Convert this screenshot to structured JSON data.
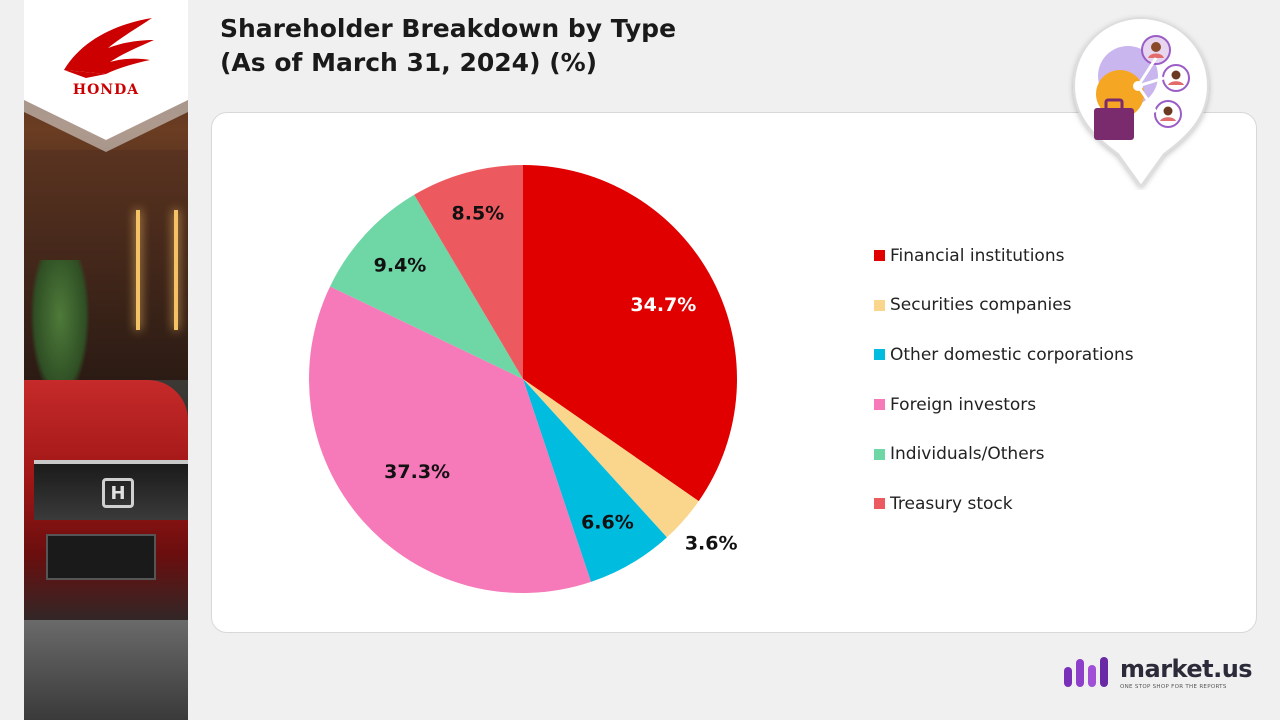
{
  "brand_logo": {
    "text": "HONDA",
    "color": "#cc0000"
  },
  "title": {
    "line1": "Shareholder Breakdown by Type",
    "line2": "(As of March 31, 2024) (%)"
  },
  "chart_data": {
    "type": "pie",
    "title": "Shareholder Breakdown by Type (As of March 31, 2024) (%)",
    "categories": [
      "Financial institutions",
      "Securities companies",
      "Other domestic corporations",
      "Foreign investors",
      "Individuals/Others",
      "Treasury stock"
    ],
    "values": [
      34.7,
      3.6,
      6.6,
      37.3,
      9.4,
      8.5
    ],
    "labels": [
      "34.7%",
      "3.6%",
      "6.6%",
      "37.3%",
      "9.4%",
      "8.5%"
    ],
    "colors": [
      "#e00000",
      "#fad58c",
      "#00bcdf",
      "#f679b9",
      "#6fd6a6",
      "#ec5a60"
    ],
    "label_colors": [
      "#ffffff",
      "#111111",
      "#111111",
      "#111111",
      "#111111",
      "#111111"
    ],
    "legend_position": "right"
  },
  "footer_brand": {
    "name": "market.us",
    "tagline": "ONE STOP SHOP FOR THE REPORTS"
  },
  "icons": {
    "badge": "shareholder-network-icon"
  }
}
